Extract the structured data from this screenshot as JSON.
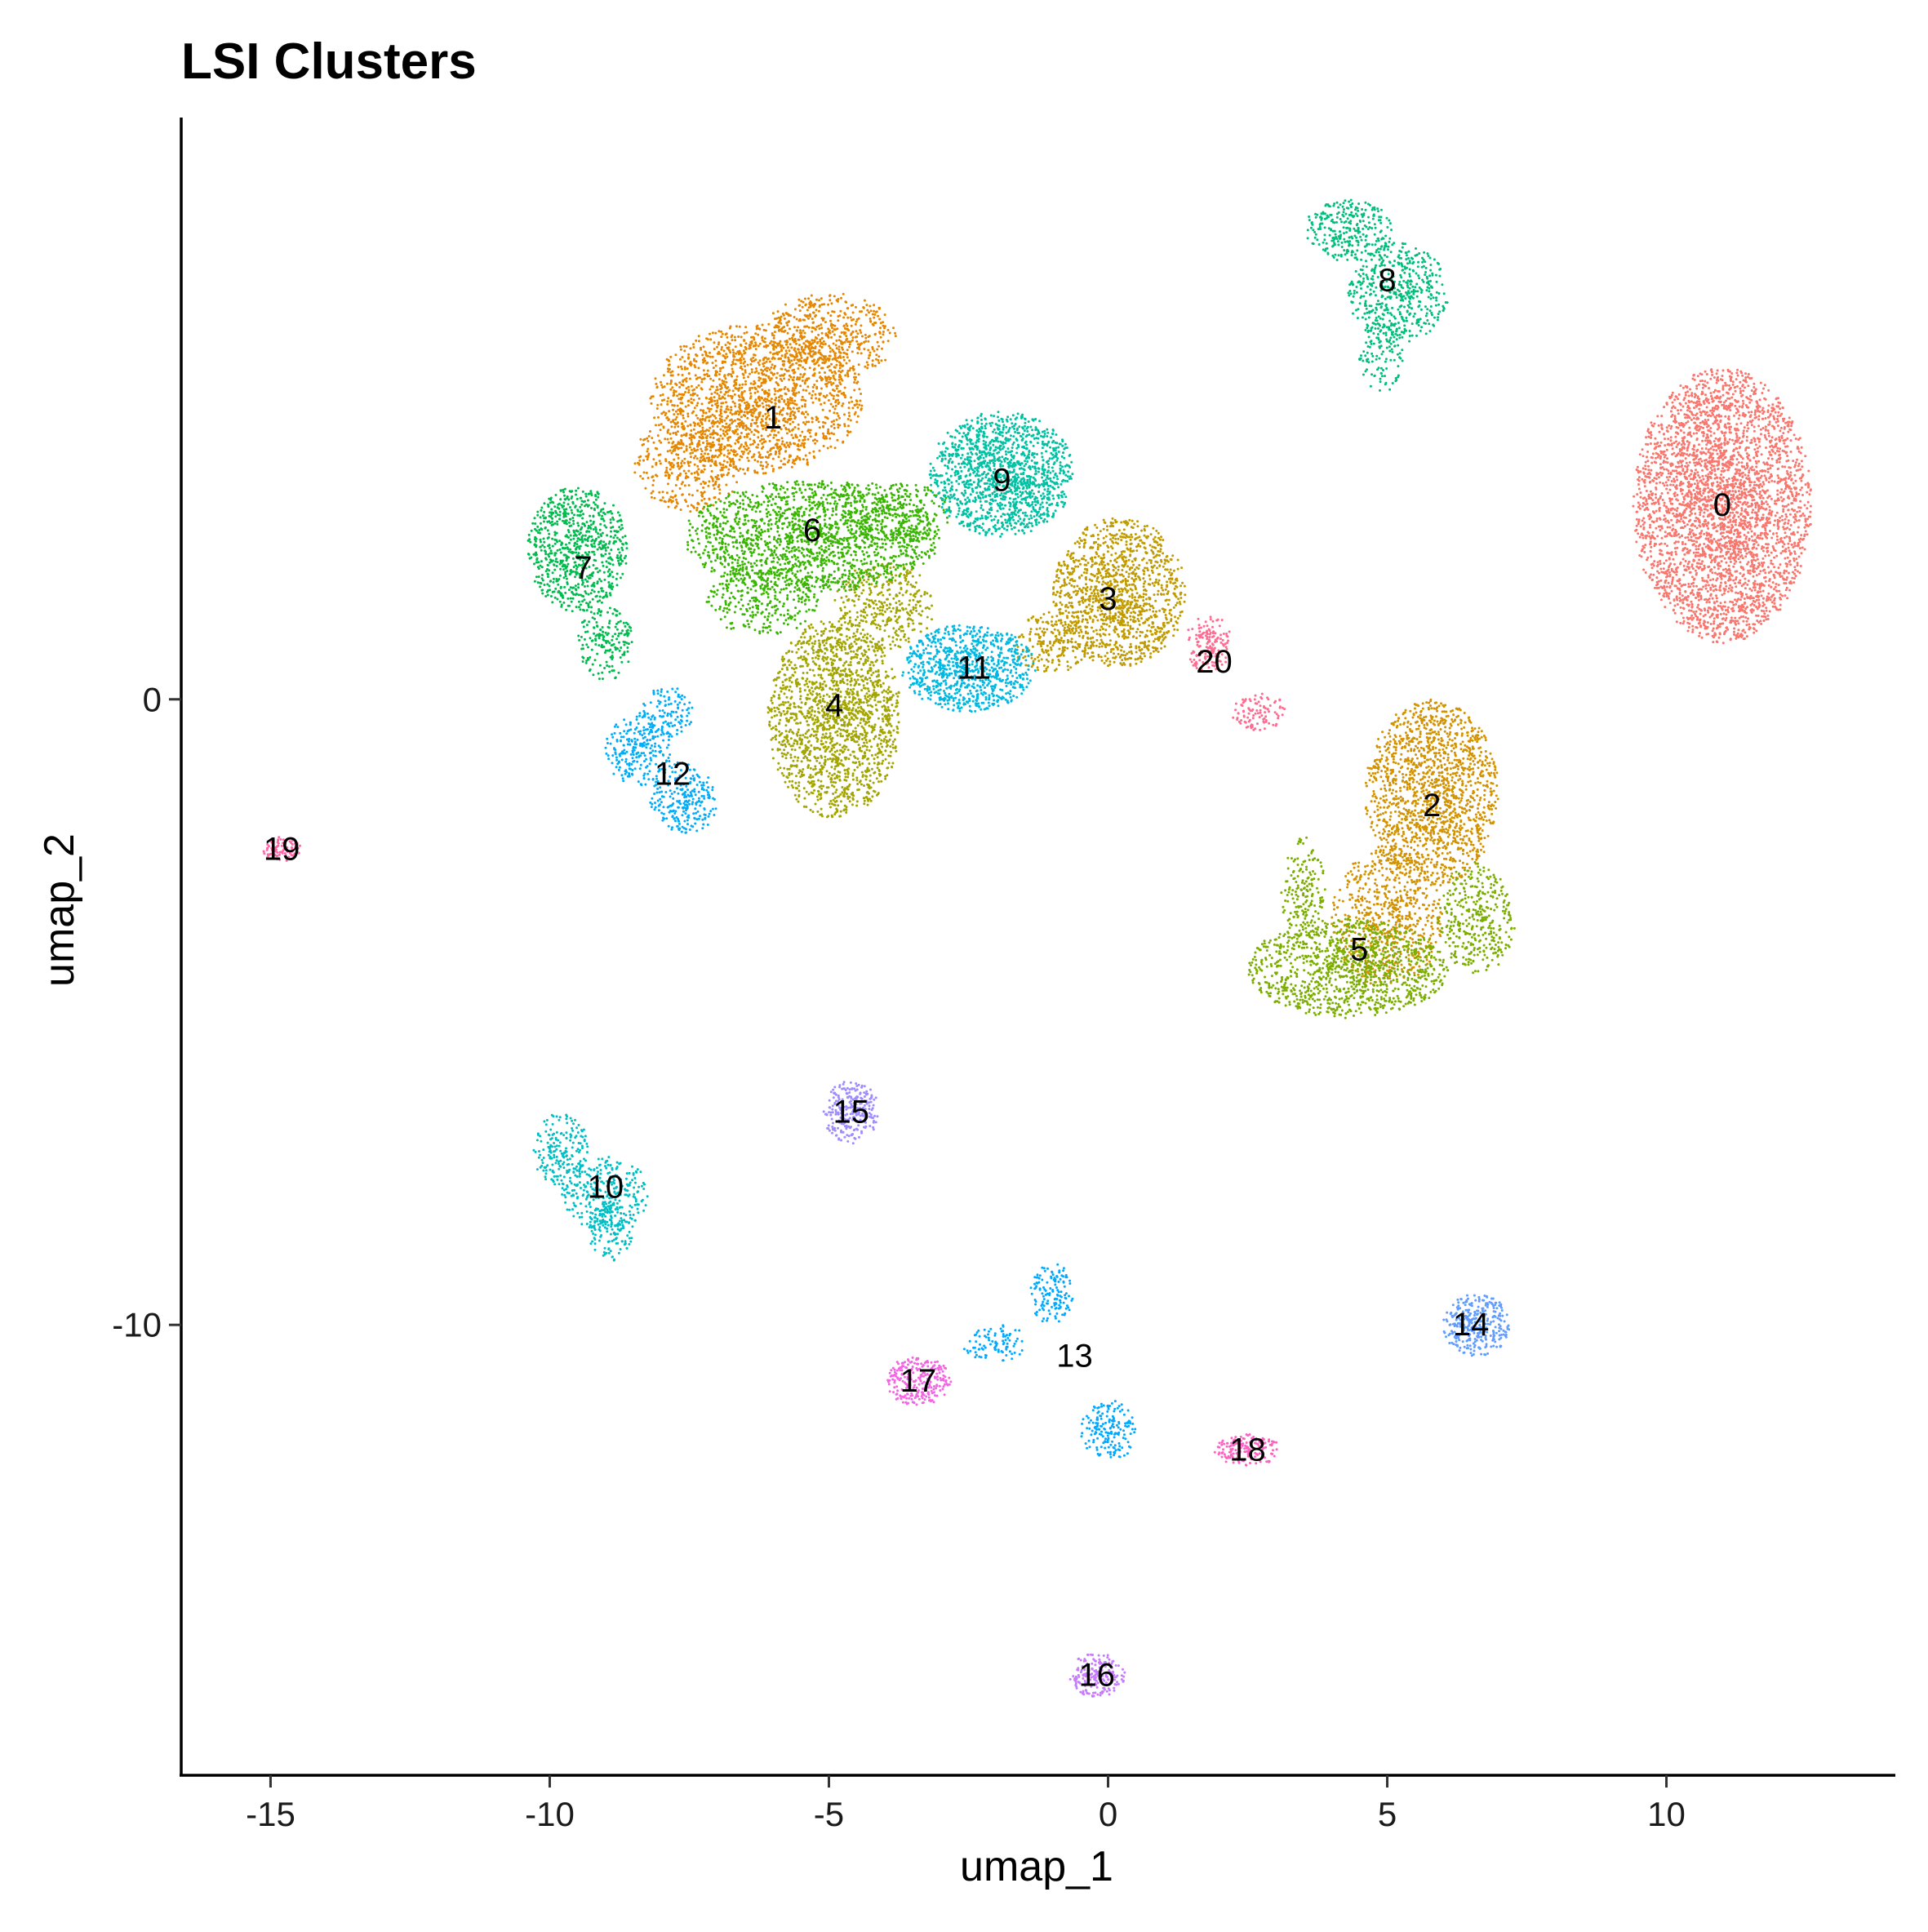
{
  "chart_data": {
    "type": "scatter",
    "title": "LSI Clusters",
    "xlabel": "umap_1",
    "ylabel": "umap_2",
    "xlim": [
      -16.6,
      14.1
    ],
    "ylim": [
      -17.2,
      9.3
    ],
    "x_ticks": [
      -15,
      -10,
      -5,
      0,
      5,
      10
    ],
    "y_ticks": [
      0,
      -10
    ],
    "grid": false,
    "legend": "none",
    "point_size": 1.5,
    "clusters": [
      {
        "id": "0",
        "label": "0",
        "color": "#F8766D",
        "center": [
          11.0,
          3.1
        ],
        "shape": [
          [
            11.0,
            3.1,
            1.6,
            2.2,
            0.9
          ]
        ]
      },
      {
        "id": "1",
        "label": "1",
        "color": "#E58700",
        "center": [
          -6.0,
          4.5
        ],
        "shape": [
          [
            -6.3,
            4.8,
            1.9,
            1.2,
            0.55
          ],
          [
            -5.0,
            5.8,
            1.2,
            0.7,
            0.3
          ],
          [
            -7.5,
            3.8,
            1.0,
            0.8,
            0.15
          ]
        ]
      },
      {
        "id": "2",
        "label": "2",
        "color": "#D39200",
        "center": [
          5.8,
          -1.7
        ],
        "shape": [
          [
            5.8,
            -1.5,
            1.2,
            1.5,
            0.7
          ],
          [
            5.0,
            -3.5,
            1.0,
            1.1,
            0.3
          ]
        ]
      },
      {
        "id": "3",
        "label": "3",
        "color": "#C09B00",
        "center": [
          0.0,
          1.6
        ],
        "shape": [
          [
            0.2,
            1.7,
            1.2,
            1.2,
            0.75
          ],
          [
            -1.0,
            0.9,
            0.7,
            0.5,
            0.25
          ]
        ]
      },
      {
        "id": "4",
        "label": "4",
        "color": "#A3A500",
        "center": [
          -4.9,
          -0.1
        ],
        "shape": [
          [
            -4.9,
            -0.3,
            1.2,
            1.6,
            0.75
          ],
          [
            -4.0,
            1.5,
            0.9,
            0.7,
            0.25
          ]
        ]
      },
      {
        "id": "5",
        "label": "5",
        "color": "#7CAE00",
        "center": [
          4.5,
          -4.0
        ],
        "shape": [
          [
            4.3,
            -4.3,
            1.8,
            0.8,
            0.6
          ],
          [
            6.6,
            -3.5,
            0.7,
            0.9,
            0.25
          ],
          [
            3.5,
            -3.1,
            0.4,
            0.9,
            0.15
          ]
        ]
      },
      {
        "id": "6",
        "label": "6",
        "color": "#39B600",
        "center": [
          -5.3,
          2.7
        ],
        "shape": [
          [
            -5.3,
            2.6,
            2.3,
            0.9,
            0.6
          ],
          [
            -3.8,
            3.0,
            1.0,
            0.5,
            0.25
          ],
          [
            -6.2,
            1.6,
            1.0,
            0.6,
            0.15
          ]
        ]
      },
      {
        "id": "7",
        "label": "7",
        "color": "#00BB4E",
        "center": [
          -9.4,
          2.1
        ],
        "shape": [
          [
            -9.5,
            2.4,
            0.9,
            1.0,
            0.7
          ],
          [
            -9.0,
            0.9,
            0.5,
            0.6,
            0.3
          ]
        ]
      },
      {
        "id": "8",
        "label": "8",
        "color": "#00BF7D",
        "center": [
          5.0,
          6.7
        ],
        "shape": [
          [
            4.3,
            7.5,
            0.8,
            0.5,
            0.45
          ],
          [
            5.2,
            6.5,
            0.9,
            0.8,
            0.4
          ],
          [
            4.9,
            5.5,
            0.4,
            0.6,
            0.15
          ]
        ]
      },
      {
        "id": "9",
        "label": "9",
        "color": "#00C1A3",
        "center": [
          -1.9,
          3.5
        ],
        "shape": [
          [
            -1.9,
            3.6,
            1.3,
            1.0,
            1.0
          ]
        ]
      },
      {
        "id": "10",
        "label": "10",
        "color": "#00BFC4",
        "center": [
          -9.0,
          -7.8
        ],
        "shape": [
          [
            -9.8,
            -7.2,
            0.5,
            0.6,
            0.35
          ],
          [
            -9.0,
            -7.9,
            0.8,
            0.6,
            0.35
          ],
          [
            -8.9,
            -8.5,
            0.4,
            0.5,
            0.3
          ]
        ]
      },
      {
        "id": "11",
        "label": "11",
        "color": "#00B9E3",
        "center": [
          -2.4,
          0.5
        ],
        "shape": [
          [
            -2.5,
            0.5,
            1.2,
            0.7,
            1.0
          ]
        ]
      },
      {
        "id": "12",
        "label": "12",
        "color": "#00ADFA",
        "center": [
          -7.8,
          -1.2
        ],
        "shape": [
          [
            -8.4,
            -0.8,
            0.6,
            0.6,
            0.4
          ],
          [
            -7.6,
            -1.6,
            0.6,
            0.6,
            0.4
          ],
          [
            -7.9,
            -0.2,
            0.5,
            0.4,
            0.2
          ]
        ]
      },
      {
        "id": "13",
        "label": "13",
        "color": "#00A9FF",
        "center": [
          -0.6,
          -10.5
        ],
        "shape": [
          [
            -1.0,
            -9.5,
            0.4,
            0.5,
            0.4
          ],
          [
            -2.0,
            -10.3,
            0.6,
            0.3,
            0.15
          ],
          [
            0.0,
            -11.7,
            0.5,
            0.5,
            0.45
          ]
        ]
      },
      {
        "id": "14",
        "label": "14",
        "color": "#619CFF",
        "center": [
          6.5,
          -10.0
        ],
        "shape": [
          [
            6.6,
            -10.0,
            0.6,
            0.5,
            1.0
          ]
        ]
      },
      {
        "id": "15",
        "label": "15",
        "color": "#9F8CFF",
        "center": [
          -4.6,
          -6.6
        ],
        "shape": [
          [
            -4.6,
            -6.6,
            0.5,
            0.5,
            1.0
          ]
        ]
      },
      {
        "id": "16",
        "label": "16",
        "color": "#C77CFF",
        "center": [
          -0.2,
          -15.6
        ],
        "shape": [
          [
            -0.2,
            -15.6,
            0.5,
            0.35,
            1.0
          ]
        ]
      },
      {
        "id": "17",
        "label": "17",
        "color": "#F564E3",
        "center": [
          -3.4,
          -10.9
        ],
        "shape": [
          [
            -3.4,
            -10.9,
            0.6,
            0.4,
            1.0
          ]
        ]
      },
      {
        "id": "18",
        "label": "18",
        "color": "#FF61C3",
        "center": [
          2.5,
          -12.0
        ],
        "shape": [
          [
            2.5,
            -12.0,
            0.6,
            0.25,
            1.0
          ]
        ]
      },
      {
        "id": "19",
        "label": "19",
        "color": "#FF66A8",
        "center": [
          -14.8,
          -2.4
        ],
        "shape": [
          [
            -14.8,
            -2.4,
            0.35,
            0.2,
            1.0
          ]
        ]
      },
      {
        "id": "20",
        "label": "20",
        "color": "#FF6C91",
        "center": [
          1.9,
          0.6
        ],
        "shape": [
          [
            1.8,
            0.9,
            0.4,
            0.5,
            0.6
          ],
          [
            2.7,
            -0.2,
            0.5,
            0.3,
            0.4
          ]
        ]
      }
    ]
  }
}
